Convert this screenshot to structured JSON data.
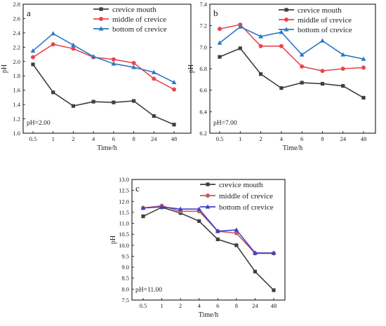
{
  "chart_data": [
    {
      "type": "line",
      "panel": "a",
      "categories": [
        "0.5",
        "1",
        "2",
        "4",
        "6",
        "8",
        "24",
        "48"
      ],
      "yticks": [
        "1.0",
        "1.2",
        "1.4",
        "1.6",
        "1.8",
        "2.0",
        "2.2",
        "2.4",
        "2.6",
        "2.8"
      ],
      "ylim": [
        1.0,
        2.8
      ],
      "ylabel": "pH",
      "xlabel": "Time/h",
      "annotation": "pH=2.00",
      "legend_position": "top-right",
      "grid": false,
      "series": [
        {
          "name": "crevice mouth",
          "color": "#3f3f3f",
          "marker": "square",
          "values": [
            1.96,
            1.57,
            1.38,
            1.44,
            1.43,
            1.45,
            1.24,
            1.12
          ]
        },
        {
          "name": "middle of crevice",
          "color": "#e8464f",
          "marker": "circle",
          "values": [
            2.06,
            2.24,
            2.18,
            2.06,
            2.03,
            1.98,
            1.76,
            1.61
          ]
        },
        {
          "name": "bottom of crevice",
          "color": "#2a78c5",
          "marker": "triangle",
          "values": [
            2.15,
            2.39,
            2.23,
            2.07,
            1.97,
            1.92,
            1.85,
            1.71
          ]
        }
      ]
    },
    {
      "type": "line",
      "panel": "b",
      "categories": [
        "0.5",
        "1",
        "2",
        "4",
        "6",
        "8",
        "24",
        "48"
      ],
      "yticks": [
        "6.2",
        "6.4",
        "6.6",
        "6.8",
        "7.0",
        "7.2",
        "7.4"
      ],
      "ylim": [
        6.2,
        7.4
      ],
      "ylabel": "pH",
      "xlabel": "Time/h",
      "annotation": "pH=7.00",
      "legend_position": "top-right",
      "grid": false,
      "series": [
        {
          "name": "crevice mouth",
          "color": "#3f3f3f",
          "marker": "square",
          "values": [
            6.91,
            6.99,
            6.75,
            6.62,
            6.67,
            6.66,
            6.64,
            6.53
          ]
        },
        {
          "name": "middle of crevice",
          "color": "#e8464f",
          "marker": "circle",
          "values": [
            7.17,
            7.21,
            7.01,
            7.01,
            6.82,
            6.78,
            6.8,
            6.81
          ]
        },
        {
          "name": "bottom of crevice",
          "color": "#2a78c5",
          "marker": "triangle",
          "values": [
            7.04,
            7.19,
            7.1,
            7.14,
            6.93,
            7.06,
            6.93,
            6.89
          ]
        }
      ]
    },
    {
      "type": "line",
      "panel": "c",
      "categories": [
        "0.5",
        "1",
        "2",
        "4",
        "6",
        "8",
        "24",
        "48"
      ],
      "yticks": [
        "7.5",
        "8.0",
        "8.5",
        "9.0",
        "9.5",
        "10.0",
        "10.5",
        "11.0",
        "11.5",
        "12.0",
        "12.5",
        "13.0"
      ],
      "ylim": [
        7.5,
        13.0
      ],
      "ylabel": "pH",
      "xlabel": "Time/h",
      "annotation": "pH=11.00",
      "legend_position": "top-right",
      "grid": false,
      "series": [
        {
          "name": "crevice mouth",
          "color": "#3f3f3f",
          "marker": "square",
          "values": [
            11.32,
            11.73,
            11.47,
            11.1,
            10.27,
            10.0,
            8.8,
            7.95
          ]
        },
        {
          "name": "middle of crevice",
          "color": "#c85a5a",
          "marker": "circle",
          "values": [
            11.7,
            11.8,
            11.55,
            11.55,
            10.64,
            10.55,
            9.63,
            9.63
          ]
        },
        {
          "name": "bottom of crevice",
          "color": "#4040cc",
          "marker": "triangle",
          "values": [
            11.7,
            11.75,
            11.65,
            11.65,
            10.64,
            10.7,
            9.65,
            9.65
          ]
        }
      ]
    }
  ]
}
